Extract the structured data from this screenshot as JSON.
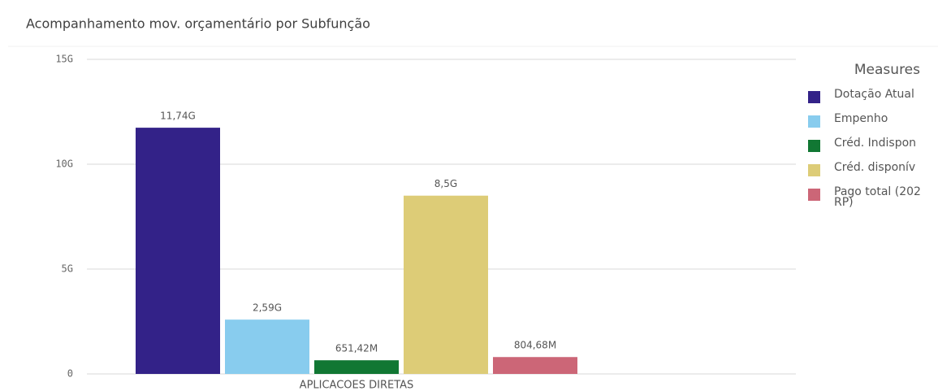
{
  "chart_data": {
    "type": "bar",
    "title": "Acompanhamento mov. orçamentário por Subfunção",
    "categories": [
      "APLICACOES DIRETAS"
    ],
    "series": [
      {
        "name": "Dotação Atual",
        "color": "#332288",
        "values": [
          11740000000
        ],
        "value_labels": [
          "11,74G"
        ]
      },
      {
        "name": "Empenho",
        "color": "#88ccee",
        "values": [
          2590000000
        ],
        "value_labels": [
          "2,59G"
        ]
      },
      {
        "name": "Créd. Indispon",
        "color": "#117733",
        "values": [
          651420000
        ],
        "value_labels": [
          "651,42M"
        ]
      },
      {
        "name": "Créd. disponív",
        "color": "#ddcc77",
        "values": [
          8500000000
        ],
        "value_labels": [
          "8,5G"
        ]
      },
      {
        "name": "Pago total (202 RP)",
        "color": "#cc6677",
        "values": [
          804680000
        ],
        "value_labels": [
          "804,68M"
        ]
      }
    ],
    "legend_title": "Measures",
    "legend": "right",
    "ylim": [
      0,
      15000000000
    ],
    "yticks": [
      {
        "value": 0,
        "label": "0"
      },
      {
        "value": 5000000000,
        "label": "5G"
      },
      {
        "value": 10000000000,
        "label": "10G"
      },
      {
        "value": 15000000000,
        "label": "15G"
      }
    ],
    "grid": true
  }
}
